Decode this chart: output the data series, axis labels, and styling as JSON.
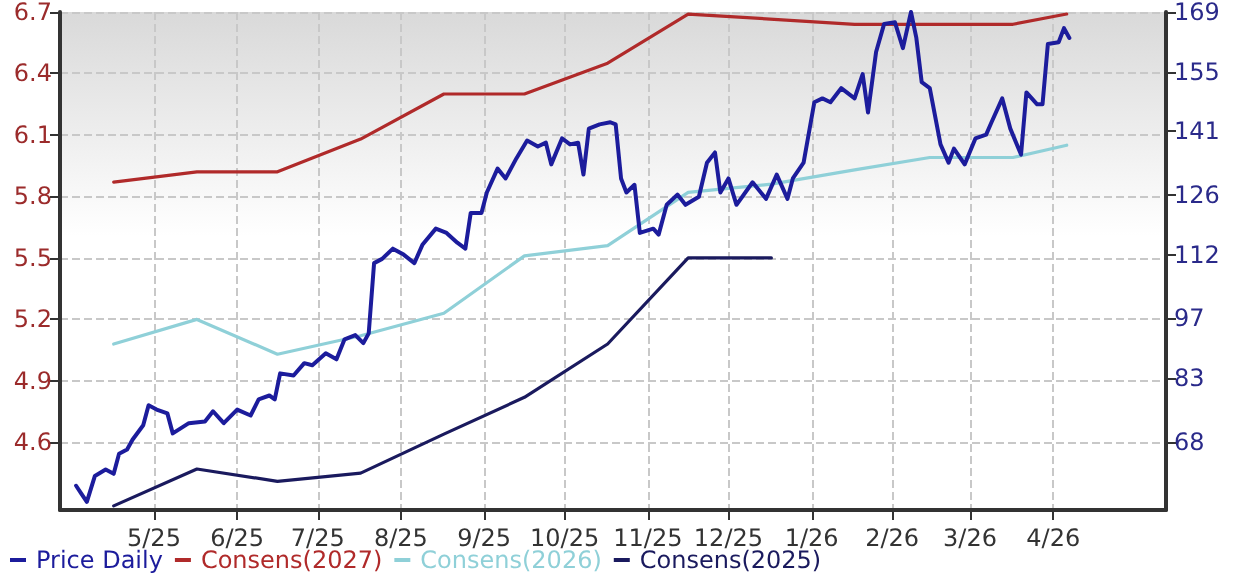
{
  "chart_data": {
    "type": "line",
    "xlim": [
      "2025-04-11",
      "2026-05-28"
    ],
    "xticks": [
      {
        "value": "2025-05-16",
        "label": "5/25"
      },
      {
        "value": "2025-06-16",
        "label": "6/25"
      },
      {
        "value": "2025-07-16",
        "label": "7/25"
      },
      {
        "value": "2025-08-16",
        "label": "8/25"
      },
      {
        "value": "2025-09-16",
        "label": "9/25"
      },
      {
        "value": "2025-10-16",
        "label": "10/25"
      },
      {
        "value": "2025-11-16",
        "label": "11/25"
      },
      {
        "value": "2025-12-16",
        "label": "12/25"
      },
      {
        "value": "2026-01-16",
        "label": "1/26"
      },
      {
        "value": "2026-02-15",
        "label": "2/26"
      },
      {
        "value": "2026-03-16",
        "label": "3/26"
      },
      {
        "value": "2026-04-16",
        "label": "4/26"
      }
    ],
    "ylim": [
      4.27,
      6.7
    ],
    "yticks": [
      4.6,
      4.9,
      5.2,
      5.5,
      5.8,
      6.1,
      6.4,
      6.7
    ],
    "y2lim": [
      52,
      169
    ],
    "y2ticks": [
      68,
      83,
      97,
      112,
      126,
      141,
      155,
      169
    ],
    "grid": true,
    "legend": "bottom left",
    "marker": "none",
    "line_style": "solid",
    "series": [
      {
        "name": "Price Daily",
        "color": "#1c1c9c",
        "axis": "y2",
        "x": [
          "2025-04-17",
          "2025-04-19",
          "2025-04-21",
          "2025-04-24",
          "2025-04-28",
          "2025-05-01",
          "2025-05-03",
          "2025-05-06",
          "2025-05-08",
          "2025-05-12",
          "2025-05-14",
          "2025-05-17",
          "2025-05-21",
          "2025-05-23",
          "2025-05-29",
          "2025-06-04",
          "2025-06-07",
          "2025-06-11",
          "2025-06-16",
          "2025-06-21",
          "2025-06-24",
          "2025-06-28",
          "2025-06-30",
          "2025-07-02",
          "2025-07-07",
          "2025-07-11",
          "2025-07-14",
          "2025-07-19",
          "2025-07-23",
          "2025-07-26",
          "2025-07-30",
          "2025-08-02",
          "2025-08-04",
          "2025-08-06",
          "2025-08-09",
          "2025-08-13",
          "2025-08-17",
          "2025-08-21",
          "2025-08-24",
          "2025-08-29",
          "2025-09-02",
          "2025-09-06",
          "2025-09-09",
          "2025-09-11",
          "2025-09-15",
          "2025-09-17",
          "2025-09-21",
          "2025-09-24",
          "2025-09-28",
          "2025-10-02",
          "2025-10-06",
          "2025-10-09",
          "2025-10-11",
          "2025-10-15",
          "2025-10-18",
          "2025-10-21",
          "2025-10-23",
          "2025-10-25",
          "2025-10-29",
          "2025-11-02",
          "2025-11-04",
          "2025-11-06",
          "2025-11-08",
          "2025-11-11",
          "2025-11-13",
          "2025-11-18",
          "2025-11-20",
          "2025-11-23",
          "2025-11-27",
          "2025-11-30",
          "2025-12-05",
          "2025-12-08",
          "2025-12-11",
          "2025-12-13",
          "2025-12-16",
          "2025-12-19",
          "2025-12-25",
          "2025-12-30",
          "2026-01-03",
          "2026-01-07",
          "2026-01-09",
          "2026-01-13",
          "2026-01-17",
          "2026-01-20",
          "2026-01-23",
          "2026-01-27",
          "2026-02-01",
          "2026-02-04",
          "2026-02-06",
          "2026-02-09",
          "2026-02-12",
          "2026-02-16",
          "2026-02-19",
          "2026-02-22",
          "2026-02-24",
          "2026-02-26",
          "2026-03-01",
          "2026-03-05",
          "2026-03-08",
          "2026-03-10",
          "2026-03-14",
          "2026-03-18",
          "2026-03-22",
          "2026-03-24",
          "2026-03-28",
          "2026-03-31",
          "2026-04-04",
          "2026-04-06",
          "2026-04-10",
          "2026-04-12",
          "2026-04-14",
          "2026-04-18",
          "2026-04-20",
          "2026-04-22"
        ],
        "values": [
          57.7,
          55.8,
          53.9,
          60.0,
          61.5,
          60.5,
          65.2,
          66.2,
          68.5,
          71.9,
          76.6,
          75.6,
          74.7,
          70.0,
          72.4,
          72.8,
          75.2,
          72.4,
          75.6,
          74.2,
          78.0,
          78.9,
          78.0,
          84.1,
          83.6,
          86.5,
          86.0,
          88.8,
          87.4,
          92.1,
          93.1,
          91.2,
          93.5,
          110.0,
          111.0,
          113.4,
          112.0,
          110.0,
          114.3,
          118.1,
          117.1,
          114.8,
          113.4,
          121.8,
          121.8,
          126.6,
          132.2,
          129.9,
          134.6,
          138.8,
          137.4,
          138.3,
          133.2,
          139.3,
          137.9,
          138.3,
          130.8,
          141.6,
          142.6,
          143.1,
          142.6,
          129.9,
          126.6,
          128.4,
          117.1,
          118.1,
          116.7,
          123.7,
          126.1,
          123.7,
          125.6,
          133.6,
          136.0,
          126.6,
          129.9,
          123.7,
          129.0,
          125.1,
          130.8,
          125.1,
          129.9,
          133.6,
          147.8,
          148.7,
          147.8,
          151.1,
          148.7,
          154.4,
          145.4,
          159.6,
          166.2,
          166.6,
          160.5,
          169.0,
          162.9,
          152.5,
          151.1,
          137.9,
          133.6,
          136.9,
          133.2,
          139.3,
          140.2,
          143.1,
          148.7,
          141.6,
          135.5,
          150.1,
          147.3,
          147.3,
          161.5,
          161.9,
          165.2,
          162.9
        ]
      },
      {
        "name": "Consens(2027)",
        "color": "#b02a2a",
        "x": [
          "2025-05-01",
          "2025-06-01",
          "2025-07-01",
          "2025-08-01",
          "2025-09-01",
          "2025-10-01",
          "2025-11-01",
          "2025-12-01",
          "2026-02-01",
          "2026-03-01",
          "2026-04-01",
          "2026-04-21"
        ],
        "values": [
          5.87,
          5.92,
          5.92,
          6.08,
          6.3,
          6.3,
          6.45,
          6.69,
          6.64,
          6.64,
          6.64,
          6.69
        ]
      },
      {
        "name": "Consens(2026)",
        "color": "#8fd0d8",
        "x": [
          "2025-05-01",
          "2025-06-01",
          "2025-07-01",
          "2025-08-01",
          "2025-09-01",
          "2025-10-01",
          "2025-11-01",
          "2025-12-01",
          "2026-01-01",
          "2026-02-01",
          "2026-03-01",
          "2026-04-01",
          "2026-04-21"
        ],
        "values": [
          5.08,
          5.2,
          5.03,
          5.12,
          5.23,
          5.51,
          5.56,
          5.82,
          5.86,
          5.93,
          5.99,
          5.99,
          6.05
        ]
      },
      {
        "name": "Consens(2025)",
        "color": "#1a1a5e",
        "x": [
          "2025-05-01",
          "2025-06-01",
          "2025-07-01",
          "2025-08-01",
          "2025-09-01",
          "2025-10-01",
          "2025-11-01",
          "2025-12-01",
          "2026-01-01"
        ],
        "values": [
          4.29,
          4.47,
          4.41,
          4.45,
          4.64,
          4.82,
          5.08,
          5.5,
          5.5
        ]
      }
    ]
  }
}
